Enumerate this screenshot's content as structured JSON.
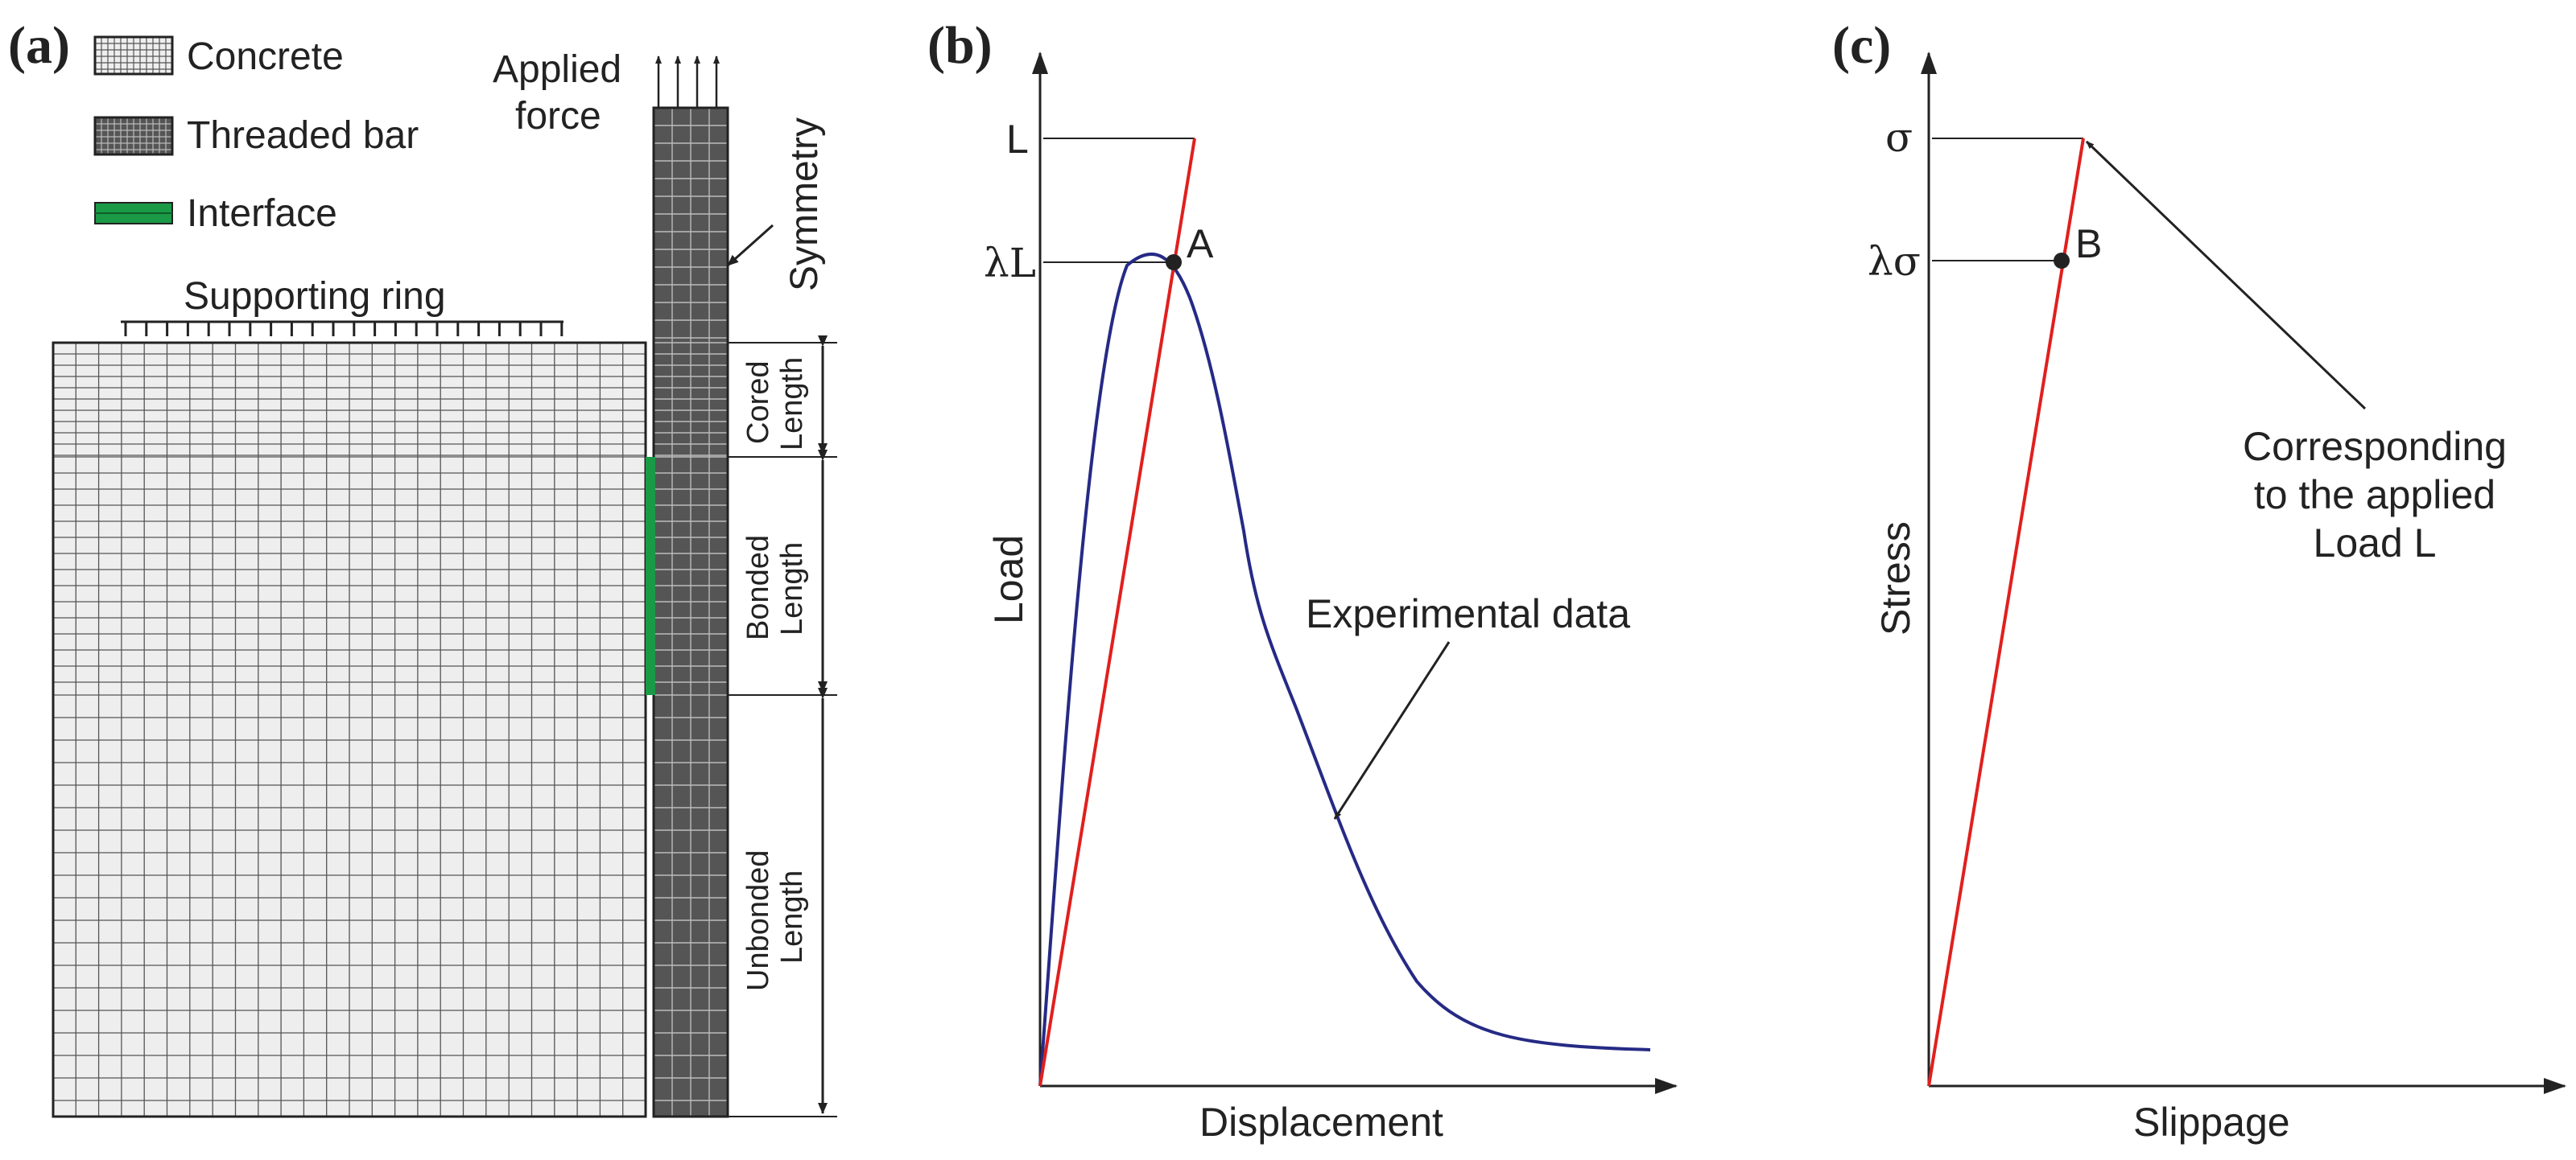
{
  "panel_a": {
    "label": "(a)",
    "legend": [
      {
        "name": "concrete",
        "label": "Concrete"
      },
      {
        "name": "threaded-bar",
        "label": "Threaded bar"
      },
      {
        "name": "interface",
        "label": "Interface"
      }
    ],
    "supporting_ring": "Supporting ring",
    "applied_force_line1": "Applied",
    "applied_force_line2": "force",
    "symmetry": "Symmetry",
    "lengths": {
      "cored_line1": "Cored",
      "cored_line2": "Length",
      "bonded_line1": "Bonded",
      "bonded_line2": "Length",
      "unbonded_line1": "Unbonded",
      "unbonded_line2": "Length"
    }
  },
  "panel_b": {
    "label": "(b)",
    "x_axis_label": "Displacement",
    "y_axis_label": "Load",
    "tick_L": "L",
    "tick_lambda_L": "λL",
    "point_label": "A",
    "annotation": "Experimental data"
  },
  "panel_c": {
    "label": "(c)",
    "x_axis_label": "Slippage",
    "y_axis_label": "Stress",
    "tick_sigma": "σ",
    "tick_lambda_sigma": "λσ",
    "point_label": "B",
    "annotation_line1": "Corresponding",
    "annotation_line2": "to the applied",
    "annotation_line3": "Load L"
  },
  "colors": {
    "concrete_fill": "#eeeeee",
    "grid_line": "#555555",
    "bar_fill": "#555555",
    "bar_grid": "#bbbbbb",
    "interface": "#1a9a47",
    "red_line": "#e0201e",
    "blue_curve": "#262a85",
    "axis": "#222222"
  }
}
